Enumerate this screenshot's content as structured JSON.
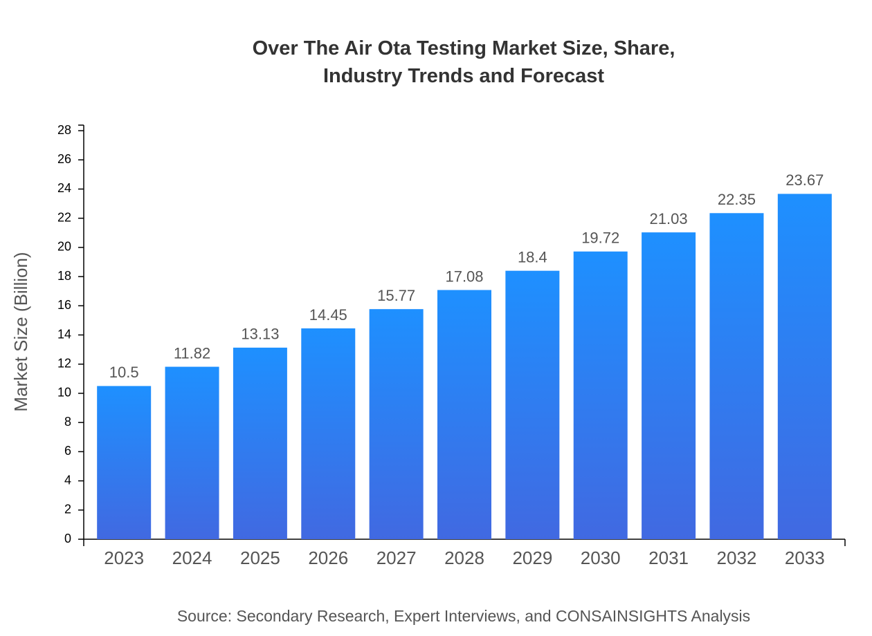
{
  "chart_data": {
    "type": "bar",
    "title": "Over The Air Ota Testing Market Size, Share, Industry Trends and Forecast",
    "y_label": "Market Size (Billion)",
    "source": "Source: Secondary Research, Expert Interviews, and CONSAINSIGHTS Analysis",
    "categories": [
      "2023",
      "2024",
      "2025",
      "2026",
      "2027",
      "2028",
      "2029",
      "2030",
      "2031",
      "2032",
      "2033"
    ],
    "values": [
      10.5,
      11.82,
      13.13,
      14.45,
      15.77,
      17.08,
      18.4,
      19.72,
      21.03,
      22.35,
      23.67
    ],
    "color": [
      "#1e90ff",
      "#4169e1"
    ],
    "ylim": [
      0,
      28.4
    ],
    "yticks": [
      0,
      2,
      4,
      6,
      8,
      10,
      12,
      14,
      16,
      18,
      20,
      22,
      24,
      26,
      28
    ],
    "grid": false
  }
}
